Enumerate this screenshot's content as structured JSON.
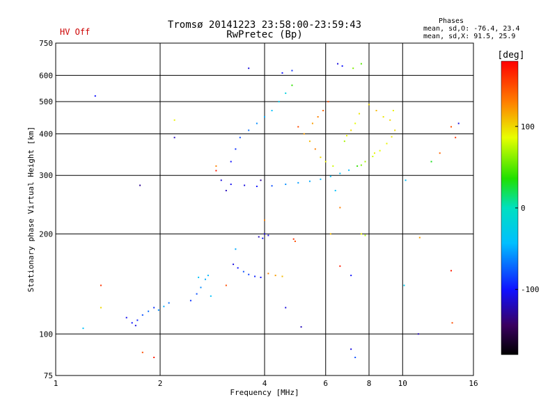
{
  "header": {
    "status": "HV Off",
    "title_line1": "Tromsø 20141223 23:58:00-23:59:43",
    "title_line2": "RwPretec (Bp)",
    "stats_heading": "Phases",
    "stats_line1": "mean, sd,O: -76.4, 23.4",
    "stats_line2": "mean, sd,X:  91.5, 25.9"
  },
  "colors": {
    "status": "#cc0000",
    "grid": "#000000",
    "text": "#000000"
  },
  "chart_data": {
    "type": "scatter",
    "xlabel": "Frequency [MHz]",
    "ylabel": "Stationary phase Virtual Height [km]",
    "xscale": "log",
    "yscale": "log",
    "xlim": [
      1,
      16
    ],
    "ylim": [
      75,
      750
    ],
    "xticks": [
      1,
      2,
      4,
      6,
      8,
      10,
      16
    ],
    "yticks": [
      75,
      100,
      200,
      300,
      400,
      500,
      600,
      750
    ],
    "grid": true,
    "colorbar": {
      "label": "[deg]",
      "range": [
        -180,
        180
      ],
      "ticks": [
        100,
        0,
        -100
      ],
      "colormap": "rainbow"
    },
    "series": [
      {
        "points": [
          [
            1.66,
            108,
            -100
          ],
          [
            1.72,
            110,
            -95
          ],
          [
            1.78,
            114,
            -80
          ],
          [
            1.85,
            117,
            -70
          ],
          [
            1.92,
            120,
            -90
          ],
          [
            1.98,
            118,
            -60
          ],
          [
            2.05,
            121,
            -50
          ],
          [
            2.12,
            124,
            -70
          ],
          [
            1.6,
            112,
            -105
          ],
          [
            1.7,
            106,
            -110
          ],
          [
            2.45,
            126,
            -90
          ],
          [
            2.55,
            132,
            -80
          ],
          [
            2.62,
            138,
            -60
          ],
          [
            2.7,
            146,
            -50
          ],
          [
            2.75,
            150,
            -45
          ],
          [
            2.58,
            148,
            -40
          ],
          [
            2.8,
            130,
            -40
          ],
          [
            3.25,
            162,
            -110
          ],
          [
            3.35,
            158,
            -100
          ],
          [
            3.48,
            154,
            -80
          ],
          [
            3.6,
            151,
            -85
          ],
          [
            3.75,
            149,
            -95
          ],
          [
            3.9,
            148,
            -100
          ],
          [
            4.1,
            152,
            130
          ],
          [
            4.3,
            150,
            120
          ],
          [
            4.5,
            149,
            110
          ],
          [
            3.85,
            196,
            -120
          ],
          [
            4.0,
            200,
            -115
          ],
          [
            4.1,
            198,
            -110
          ],
          [
            3.95,
            194,
            -100
          ],
          [
            4.9,
            190,
            150
          ],
          [
            4.85,
            193,
            160
          ],
          [
            3.0,
            290,
            -110
          ],
          [
            3.2,
            282,
            -105
          ],
          [
            3.5,
            280,
            -110
          ],
          [
            3.8,
            278,
            -100
          ],
          [
            4.2,
            279,
            -80
          ],
          [
            4.6,
            282,
            -60
          ],
          [
            5.0,
            285,
            -55
          ],
          [
            5.4,
            288,
            -50
          ],
          [
            5.8,
            292,
            -45
          ],
          [
            6.2,
            298,
            -40
          ],
          [
            6.6,
            304,
            -40
          ],
          [
            7.0,
            311,
            -45
          ],
          [
            7.4,
            320,
            40
          ],
          [
            7.8,
            330,
            70
          ],
          [
            8.2,
            342,
            80
          ],
          [
            8.6,
            356,
            85
          ],
          [
            9.0,
            374,
            90
          ],
          [
            9.3,
            392,
            95
          ],
          [
            9.5,
            410,
            100
          ],
          [
            8.3,
            350,
            90
          ],
          [
            7.6,
            322,
            60
          ],
          [
            6.8,
            380,
            70
          ],
          [
            6.9,
            395,
            90
          ],
          [
            7.1,
            410,
            100
          ],
          [
            7.3,
            430,
            85
          ],
          [
            7.5,
            460,
            95
          ],
          [
            8.0,
            490,
            100
          ],
          [
            8.4,
            470,
            110
          ],
          [
            8.8,
            450,
            95
          ],
          [
            9.2,
            440,
            100
          ],
          [
            9.4,
            470,
            90
          ],
          [
            3.2,
            330,
            -100
          ],
          [
            3.3,
            360,
            -90
          ],
          [
            3.4,
            390,
            -80
          ],
          [
            3.6,
            410,
            -70
          ],
          [
            3.8,
            430,
            -60
          ],
          [
            4.0,
            450,
            -50
          ],
          [
            4.2,
            470,
            -40
          ],
          [
            4.4,
            500,
            -30
          ],
          [
            4.6,
            530,
            -20
          ],
          [
            4.8,
            560,
            40
          ],
          [
            5.0,
            420,
            150
          ],
          [
            5.2,
            400,
            120
          ],
          [
            5.4,
            380,
            110
          ],
          [
            5.6,
            360,
            130
          ],
          [
            5.8,
            340,
            100
          ],
          [
            6.0,
            330,
            90
          ],
          [
            6.3,
            320,
            80
          ],
          [
            6.5,
            650,
            -110
          ],
          [
            6.7,
            640,
            -100
          ],
          [
            7.2,
            630,
            60
          ],
          [
            7.6,
            650,
            50
          ],
          [
            4.5,
            610,
            -100
          ],
          [
            4.8,
            620,
            -90
          ],
          [
            3.6,
            630,
            -110
          ],
          [
            1.3,
            520,
            -100
          ],
          [
            1.75,
            280,
            -130
          ],
          [
            2.2,
            390,
            -120
          ],
          [
            2.2,
            440,
            90
          ],
          [
            1.35,
            140,
            160
          ],
          [
            1.35,
            120,
            100
          ],
          [
            1.2,
            104,
            -40
          ],
          [
            1.78,
            88,
            150
          ],
          [
            1.92,
            85,
            170
          ],
          [
            14.5,
            430,
            -110
          ],
          [
            14.2,
            390,
            160
          ],
          [
            13.8,
            420,
            150
          ],
          [
            12.8,
            350,
            140
          ],
          [
            11.2,
            195,
            120
          ],
          [
            10.1,
            140,
            -30
          ],
          [
            13.8,
            155,
            170
          ],
          [
            13.9,
            108,
            150
          ],
          [
            11.1,
            100,
            -120
          ],
          [
            10.2,
            290,
            -40
          ],
          [
            12.1,
            330,
            30
          ],
          [
            7.6,
            200,
            90
          ],
          [
            7.8,
            198,
            70
          ],
          [
            7.1,
            90,
            -110
          ],
          [
            7.3,
            85,
            -80
          ],
          [
            5.5,
            430,
            120
          ],
          [
            5.7,
            450,
            130
          ],
          [
            5.9,
            470,
            140
          ],
          [
            6.1,
            500,
            150
          ],
          [
            3.1,
            270,
            -120
          ],
          [
            3.9,
            290,
            -130
          ],
          [
            2.9,
            310,
            170
          ],
          [
            2.9,
            320,
            130
          ],
          [
            5.1,
            105,
            -120
          ],
          [
            4.6,
            120,
            -110
          ],
          [
            3.3,
            180,
            -50
          ],
          [
            3.1,
            140,
            150
          ],
          [
            4.0,
            220,
            130
          ],
          [
            6.2,
            200,
            110
          ],
          [
            6.6,
            160,
            170
          ],
          [
            7.1,
            150,
            -100
          ],
          [
            6.6,
            240,
            130
          ],
          [
            6.4,
            270,
            -40
          ]
        ]
      }
    ]
  }
}
